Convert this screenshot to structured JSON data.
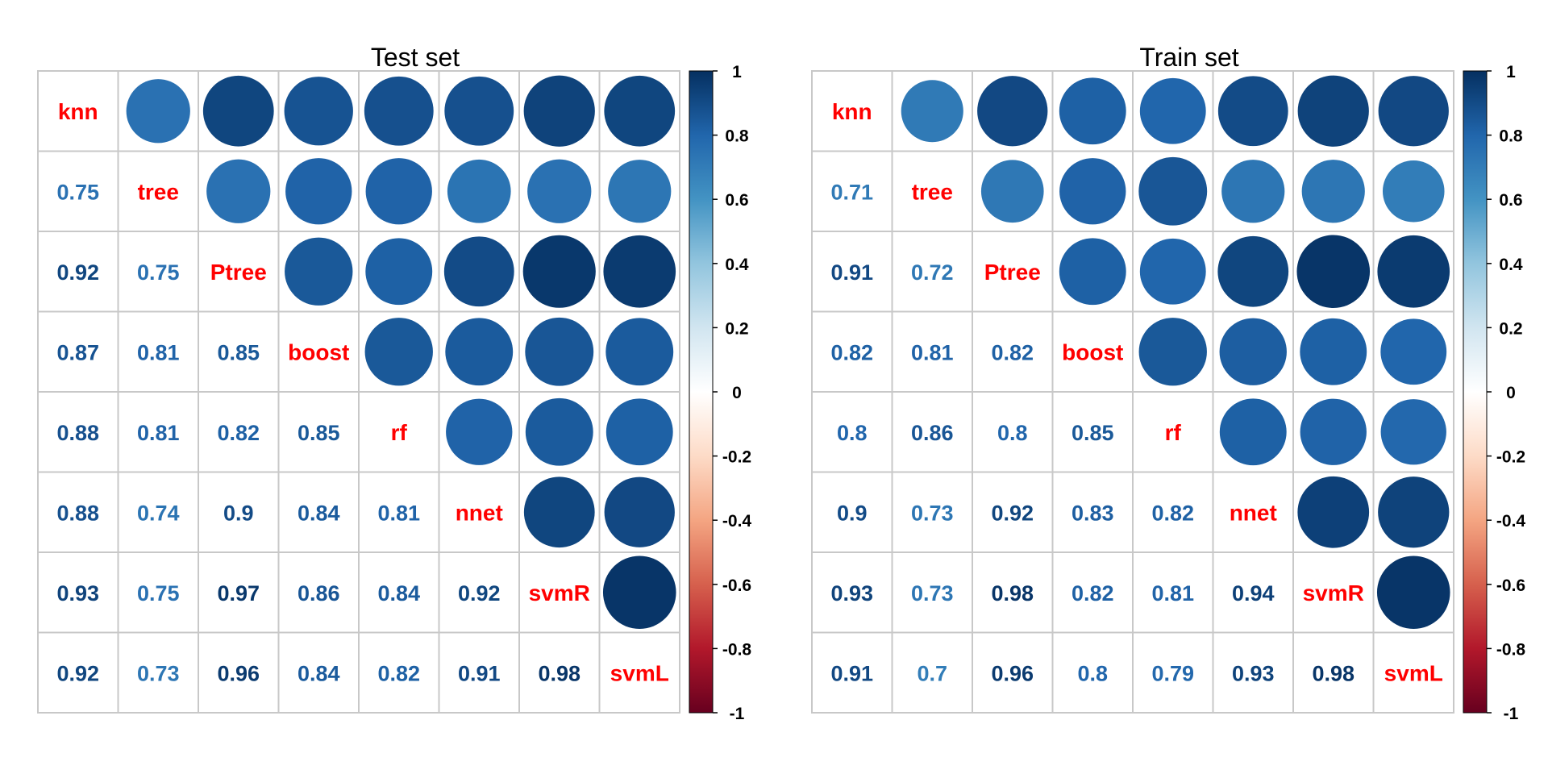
{
  "chart_data": [
    {
      "type": "heatmap",
      "title": "Test set",
      "variables": [
        "knn",
        "tree",
        "Ptree",
        "boost",
        "rf",
        "nnet",
        "svmR",
        "svmL"
      ],
      "lower_values": [
        [
          null,
          null,
          null,
          null,
          null,
          null,
          null,
          null
        ],
        [
          "0.75",
          null,
          null,
          null,
          null,
          null,
          null,
          null
        ],
        [
          "0.92",
          "0.75",
          null,
          null,
          null,
          null,
          null,
          null
        ],
        [
          "0.87",
          "0.81",
          "0.85",
          null,
          null,
          null,
          null,
          null
        ],
        [
          "0.88",
          "0.81",
          "0.82",
          "0.85",
          null,
          null,
          null,
          null
        ],
        [
          "0.88",
          "0.74",
          "0.9",
          "0.84",
          "0.81",
          null,
          null,
          null
        ],
        [
          "0.93",
          "0.75",
          "0.97",
          "0.86",
          "0.84",
          "0.92",
          null,
          null
        ],
        [
          "0.92",
          "0.73",
          "0.96",
          "0.84",
          "0.82",
          "0.91",
          "0.98",
          null
        ]
      ],
      "colorbar_ticks": [
        "1",
        "0.8",
        "0.6",
        "0.4",
        "0.2",
        "0",
        "-0.2",
        "-0.4",
        "-0.6",
        "-0.8",
        "-1"
      ],
      "color_range": [
        -1,
        1
      ]
    },
    {
      "type": "heatmap",
      "title": "Train set",
      "variables": [
        "knn",
        "tree",
        "Ptree",
        "boost",
        "rf",
        "nnet",
        "svmR",
        "svmL"
      ],
      "lower_values": [
        [
          null,
          null,
          null,
          null,
          null,
          null,
          null,
          null
        ],
        [
          "0.71",
          null,
          null,
          null,
          null,
          null,
          null,
          null
        ],
        [
          "0.91",
          "0.72",
          null,
          null,
          null,
          null,
          null,
          null
        ],
        [
          "0.82",
          "0.81",
          "0.82",
          null,
          null,
          null,
          null,
          null
        ],
        [
          "0.8",
          "0.86",
          "0.8",
          "0.85",
          null,
          null,
          null,
          null
        ],
        [
          "0.9",
          "0.73",
          "0.92",
          "0.83",
          "0.82",
          null,
          null,
          null
        ],
        [
          "0.93",
          "0.73",
          "0.98",
          "0.82",
          "0.81",
          "0.94",
          null,
          null
        ],
        [
          "0.91",
          "0.7",
          "0.96",
          "0.8",
          "0.79",
          "0.93",
          "0.98",
          null
        ]
      ],
      "colorbar_ticks": [
        "1",
        "0.8",
        "0.6",
        "0.4",
        "0.2",
        "0",
        "-0.2",
        "-0.4",
        "-0.6",
        "-0.8",
        "-1"
      ],
      "color_range": [
        -1,
        1
      ]
    }
  ],
  "colors": {
    "diagonal_label": "#ff0000",
    "grid": "#c8c8c8",
    "colorbar_stops": [
      "#67001f",
      "#b2182b",
      "#d6604d",
      "#f4a582",
      "#fddbc7",
      "#ffffff",
      "#d1e5f0",
      "#92c5de",
      "#4393c3",
      "#2166ac",
      "#053061"
    ]
  }
}
